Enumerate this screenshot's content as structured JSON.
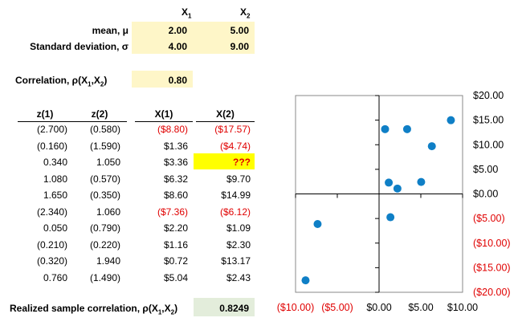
{
  "header": {
    "x1": "X",
    "x1_sub": "1",
    "x2": "X",
    "x2_sub": "2"
  },
  "params": {
    "mean_label": "mean, μ",
    "sd_label": "Standard deviation, σ",
    "mean_x1": "2.00",
    "mean_x2": "5.00",
    "sd_x1": "4.00",
    "sd_x2": "9.00"
  },
  "correlation": {
    "label": "Correlation, ρ(X",
    "label_sub1": "1",
    "label_mid": ",X",
    "label_sub2": "2",
    "label_end": ")",
    "value": "0.80"
  },
  "table": {
    "headers": {
      "z1": "z(1)",
      "z2": "z(2)",
      "x1": "X(1)",
      "x2": "X(2)"
    },
    "rows": [
      {
        "z1": "(2.700)",
        "z2": "(0.580)",
        "x1": "($8.80)",
        "x2": "($17.57)",
        "x1_neg": true,
        "x2_neg": true
      },
      {
        "z1": "(0.160)",
        "z2": "(1.590)",
        "x1": "$1.36",
        "x2": "($4.74)",
        "x1_neg": false,
        "x2_neg": true
      },
      {
        "z1": "0.340",
        "z2": "1.050",
        "x1": "$3.36",
        "x2": "???",
        "x1_neg": false,
        "x2_neg": true
      },
      {
        "z1": "1.080",
        "z2": "(0.570)",
        "x1": "$6.32",
        "x2": "$9.70",
        "x1_neg": false,
        "x2_neg": false
      },
      {
        "z1": "1.650",
        "z2": "(0.350)",
        "x1": "$8.60",
        "x2": "$14.99",
        "x1_neg": false,
        "x2_neg": false
      },
      {
        "z1": "(2.340)",
        "z2": "1.060",
        "x1": "($7.36)",
        "x2": "($6.12)",
        "x1_neg": true,
        "x2_neg": true
      },
      {
        "z1": "0.050",
        "z2": "(0.790)",
        "x1": "$2.20",
        "x2": "$1.09",
        "x1_neg": false,
        "x2_neg": false
      },
      {
        "z1": "(0.210)",
        "z2": "(0.220)",
        "x1": "$1.16",
        "x2": "$2.30",
        "x1_neg": false,
        "x2_neg": false
      },
      {
        "z1": "(0.320)",
        "z2": "1.940",
        "x1": "$0.72",
        "x2": "$13.17",
        "x1_neg": false,
        "x2_neg": false
      },
      {
        "z1": "0.760",
        "z2": "(1.490)",
        "x1": "$5.04",
        "x2": "$2.43",
        "x1_neg": false,
        "x2_neg": false
      }
    ]
  },
  "realized": {
    "label": "Realized sample correlation, ρ(X",
    "label_sub1": "1",
    "label_mid": ",X",
    "label_sub2": "2",
    "label_end": ")",
    "value": "0.8249"
  },
  "colors": {
    "highlight": "#fef6c8",
    "unknown_highlight": "#ffff00",
    "result_highlight": "#e3eddb",
    "negative": "#e00000",
    "marker": "#0f7fc6"
  },
  "chart_data": {
    "type": "scatter",
    "x": [
      -8.8,
      1.36,
      6.32,
      8.6,
      -7.36,
      2.2,
      1.16,
      0.72,
      5.04,
      3.36
    ],
    "y": [
      -17.57,
      -4.74,
      9.7,
      14.99,
      -6.12,
      1.09,
      2.3,
      13.17,
      2.43,
      13.17
    ],
    "xlim": [
      -10,
      10
    ],
    "ylim": [
      -20,
      20
    ],
    "x_ticks": [
      -10,
      -5,
      0,
      5,
      10
    ],
    "x_tick_labels": [
      "($10.00)",
      "($5.00)",
      "$0.00",
      "$5.00",
      "$10.00"
    ],
    "y_ticks": [
      20,
      15,
      10,
      5,
      0,
      -5,
      -10,
      -15,
      -20
    ],
    "y_tick_labels": [
      "$20.00",
      "$15.00",
      "$10.00",
      "$5.00",
      "$0.00",
      "($5.00)",
      "($10.00)",
      "($15.00)",
      "($20.00)"
    ],
    "grid": false
  }
}
